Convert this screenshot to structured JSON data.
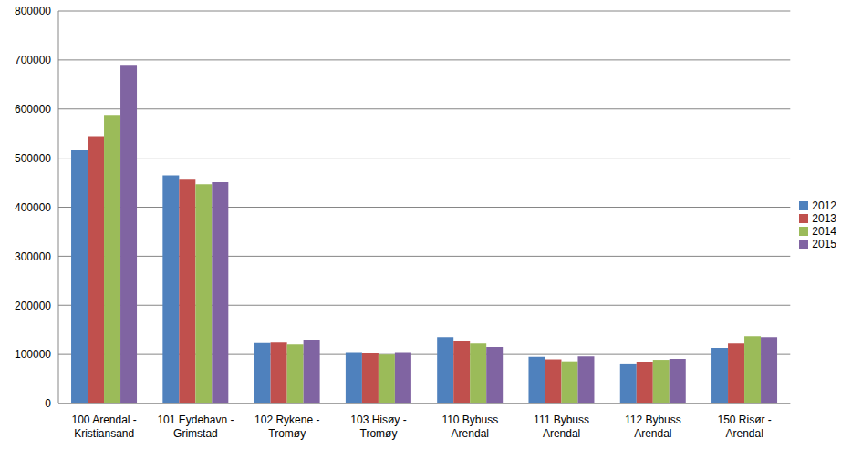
{
  "chart_data": {
    "type": "bar",
    "categories": [
      "100 Arendal - Kristiansand",
      "101 Eydehavn - Grimstad",
      "102 Rykene - Tromøy",
      "103 Hisøy - Tromøy",
      "110 Bybuss Arendal",
      "111 Bybuss Arendal",
      "112 Bybuss Arendal",
      "150 Risør - Arendal"
    ],
    "series": [
      {
        "name": "2012",
        "color": "#4f81bd",
        "values": [
          516000,
          465000,
          123000,
          103000,
          135000,
          95000,
          80000,
          113000
        ]
      },
      {
        "name": "2013",
        "color": "#c0504d",
        "values": [
          545000,
          456000,
          124000,
          102000,
          128000,
          90000,
          84000,
          122000
        ]
      },
      {
        "name": "2014",
        "color": "#9bbb59",
        "values": [
          588000,
          447000,
          120000,
          100000,
          122000,
          86000,
          89000,
          137000
        ]
      },
      {
        "name": "2015",
        "color": "#8064a2",
        "values": [
          690000,
          451000,
          130000,
          103000,
          115000,
          96000,
          91000,
          135000
        ]
      }
    ],
    "ylim": [
      0,
      800000
    ],
    "yticks": [
      0,
      100000,
      200000,
      300000,
      400000,
      500000,
      600000,
      700000,
      800000
    ],
    "grid": true,
    "legend": "right"
  }
}
